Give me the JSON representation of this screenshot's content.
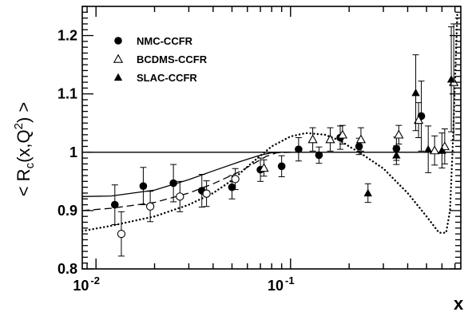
{
  "chart_data": {
    "type": "scatter",
    "xscale": "log",
    "xlim": [
      0.0085,
      0.75
    ],
    "ylim": [
      0.8,
      1.25
    ],
    "xlabel": "x",
    "ylabel_parts": {
      "pre": "< R",
      "sub": "c",
      "mid": "(x,Q",
      "sup": "2",
      "post": ") >"
    },
    "x_tick_labels": [
      {
        "base": "10",
        "exp": "-2",
        "value": 0.01
      },
      {
        "base": "10",
        "exp": "-1",
        "value": 0.1
      }
    ],
    "y_tick_labels": [
      {
        "label": "0.8",
        "value": 0.8
      },
      {
        "label": "0.9",
        "value": 0.9
      },
      {
        "label": "1",
        "value": 1.0
      },
      {
        "label": "1.1",
        "value": 1.1
      },
      {
        "label": "1.2",
        "value": 1.2
      }
    ],
    "legend": {
      "position": "top-left",
      "entries": [
        {
          "label": "NMC-CCFR",
          "marker": "filled-circle"
        },
        {
          "label": "BCDMS-CCFR",
          "marker": "open-triangle"
        },
        {
          "label": "SLAC-CCFR",
          "marker": "filled-triangle"
        }
      ]
    },
    "series": [
      {
        "marker": "filled-circle",
        "points": [
          {
            "x": 0.0125,
            "y": 0.91,
            "err": 0.034
          },
          {
            "x": 0.0175,
            "y": 0.942,
            "err": 0.032
          },
          {
            "x": 0.025,
            "y": 0.947,
            "err": 0.032
          },
          {
            "x": 0.035,
            "y": 0.934,
            "err": 0.028
          },
          {
            "x": 0.05,
            "y": 0.94,
            "err": 0.02
          },
          {
            "x": 0.07,
            "y": 0.97,
            "err": 0.02
          },
          {
            "x": 0.09,
            "y": 0.976,
            "err": 0.018
          },
          {
            "x": 0.11,
            "y": 1.005,
            "err": 0.02
          },
          {
            "x": 0.14,
            "y": 0.995,
            "err": 0.014
          },
          {
            "x": 0.18,
            "y": 1.025,
            "err": 0.02
          },
          {
            "x": 0.225,
            "y": 1.01,
            "err": 0.014
          },
          {
            "x": 0.35,
            "y": 1.006,
            "err": 0.02
          },
          {
            "x": 0.47,
            "y": 1.062,
            "err": 0.06
          }
        ]
      },
      {
        "marker": "open-circle",
        "points": [
          {
            "x": 0.0135,
            "y": 0.86,
            "err": 0.038
          },
          {
            "x": 0.019,
            "y": 0.907,
            "err": 0.026
          },
          {
            "x": 0.027,
            "y": 0.924,
            "err": 0.026
          },
          {
            "x": 0.037,
            "y": 0.929,
            "err": 0.022
          },
          {
            "x": 0.052,
            "y": 0.954,
            "err": 0.018
          }
        ]
      },
      {
        "marker": "open-triangle",
        "points": [
          {
            "x": 0.073,
            "y": 0.973,
            "err": 0.014
          },
          {
            "x": 0.13,
            "y": 1.022,
            "err": 0.02
          },
          {
            "x": 0.16,
            "y": 1.022,
            "err": 0.02
          },
          {
            "x": 0.185,
            "y": 1.03,
            "err": 0.016
          },
          {
            "x": 0.23,
            "y": 1.022,
            "err": 0.02
          },
          {
            "x": 0.36,
            "y": 1.03,
            "err": 0.016
          },
          {
            "x": 0.455,
            "y": 1.055,
            "err": 0.03
          },
          {
            "x": 0.55,
            "y": 1.003,
            "err": 0.025
          },
          {
            "x": 0.62,
            "y": 1.01,
            "err": 0.03
          },
          {
            "x": 0.69,
            "y": 1.12,
            "err": 0.1
          }
        ]
      },
      {
        "marker": "filled-triangle",
        "points": [
          {
            "x": 0.25,
            "y": 0.93,
            "err": 0.016
          },
          {
            "x": 0.35,
            "y": 0.995,
            "err": 0.016
          },
          {
            "x": 0.44,
            "y": 1.102,
            "err": 0.065
          },
          {
            "x": 0.51,
            "y": 1.005,
            "err": 0.04
          },
          {
            "x": 0.6,
            "y": 1.003,
            "err": 0.03
          },
          {
            "x": 0.67,
            "y": 1.125,
            "err": 0.09
          }
        ]
      }
    ],
    "curves": [
      {
        "style": "solid",
        "x": [
          0.0085,
          0.7
        ],
        "y": [
          1.0,
          1.0
        ]
      },
      {
        "style": "solid",
        "x": [
          0.0085,
          0.012,
          0.02,
          0.03,
          0.04,
          0.055,
          0.07,
          0.08,
          0.09,
          0.1
        ],
        "y": [
          0.924,
          0.925,
          0.935,
          0.953,
          0.968,
          0.984,
          0.995,
          0.999,
          1.0,
          1.0
        ]
      },
      {
        "style": "dashed",
        "x": [
          0.0085,
          0.012,
          0.02,
          0.03,
          0.04,
          0.055,
          0.065,
          0.075,
          0.085,
          0.1
        ],
        "y": [
          0.9,
          0.904,
          0.914,
          0.93,
          0.946,
          0.967,
          0.981,
          0.993,
          0.999,
          1.0
        ]
      },
      {
        "style": "dotted",
        "x": [
          0.0085,
          0.012,
          0.02,
          0.03,
          0.04,
          0.05,
          0.065,
          0.08,
          0.1,
          0.12,
          0.15,
          0.18,
          0.2,
          0.23,
          0.3,
          0.4,
          0.5,
          0.58,
          0.63,
          0.66,
          0.68,
          0.7,
          0.72
        ],
        "y": [
          0.865,
          0.874,
          0.89,
          0.91,
          0.93,
          0.952,
          0.985,
          1.01,
          1.027,
          1.033,
          1.03,
          1.02,
          1.01,
          0.998,
          0.972,
          0.93,
          0.89,
          0.862,
          0.862,
          0.9,
          1.0,
          1.12,
          1.24
        ]
      }
    ]
  }
}
